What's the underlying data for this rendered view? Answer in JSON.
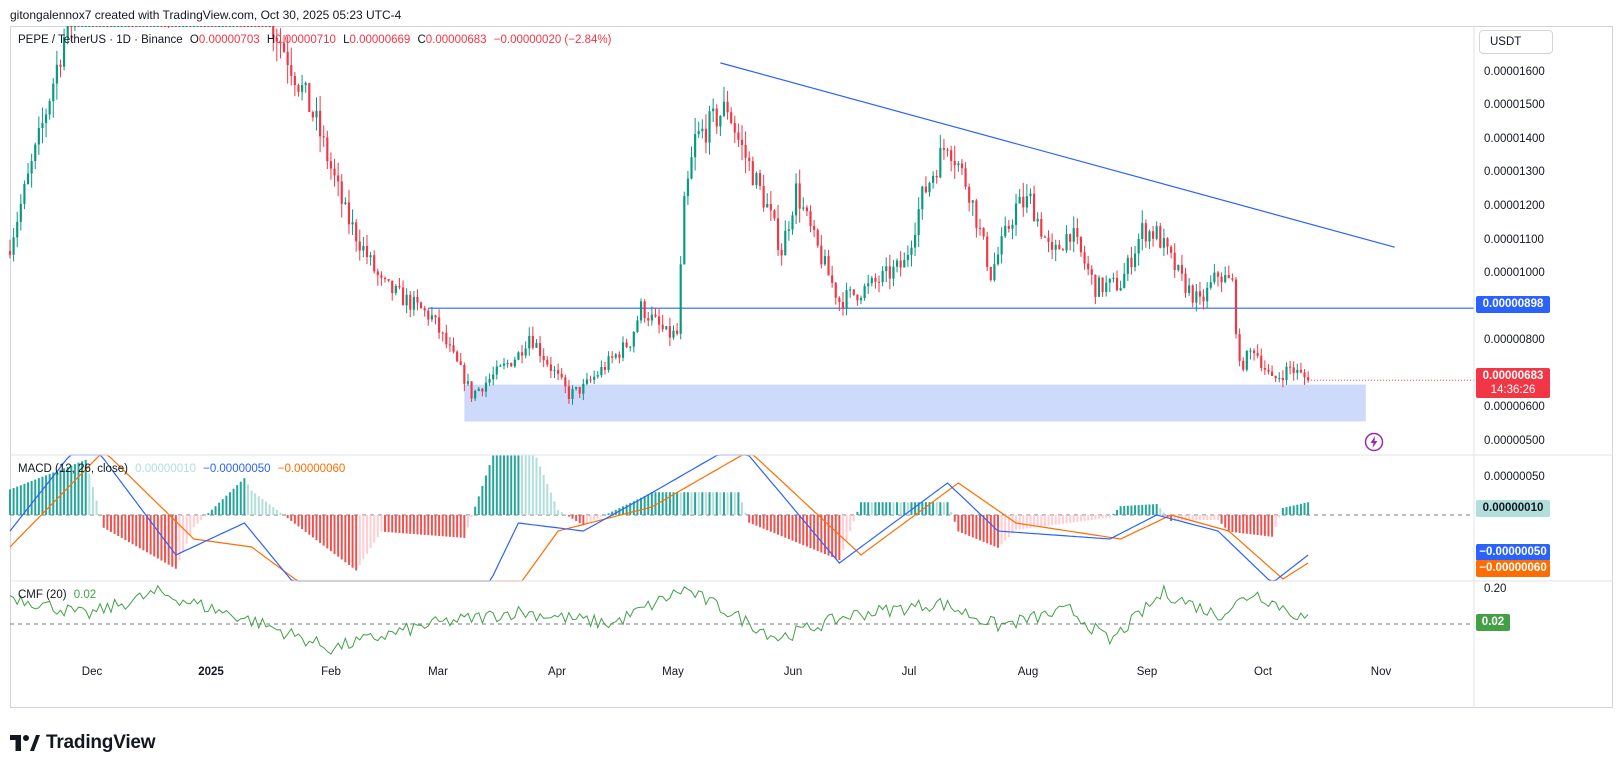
{
  "header": {
    "text": "gitongalennox7 created with TradingView.com, Oct 30, 2025 05:23 UTC-4"
  },
  "legend": {
    "symbol": "PEPE / TetherUS · 1D · Binance",
    "o_label": "O",
    "o_value": "0.00000703",
    "h_label": "H",
    "h_value": "0.00000710",
    "l_label": "L",
    "l_value": "0.00000669",
    "c_label": "C",
    "c_value": "0.00000683",
    "change": "−0.00000020 (−2.84%)",
    "macd_title": "MACD (12, 26, close)",
    "macd_hist": "0.00000010",
    "macd_line": "−0.00000050",
    "macd_signal": "−0.00000060",
    "cmf_title": "CMF (20)",
    "cmf_value": "0.02"
  },
  "price_axis": {
    "currency_button": "USDT",
    "ticks": [
      "0.00001600",
      "0.00001500",
      "0.00001400",
      "0.00001300",
      "0.00001200",
      "0.00001100",
      "0.00001000",
      "0.00000800",
      "0.00000700",
      "0.00000600",
      "0.00000500"
    ],
    "support_tag": "0.00000898",
    "last_price_tag": "0.00000683",
    "countdown": "14:36:26"
  },
  "macd_axis": {
    "ticks": [
      "0.00000050"
    ],
    "hist_tag": "0.00000010",
    "macd_tag": "−0.00000050",
    "signal_tag": "−0.00000060"
  },
  "cmf_axis": {
    "ticks": [
      "0.20"
    ],
    "value_tag": "0.02"
  },
  "time_axis": [
    "Dec",
    "2025",
    "Feb",
    "Mar",
    "Apr",
    "May",
    "Jun",
    "Jul",
    "Aug",
    "Sep",
    "Oct",
    "Nov"
  ],
  "brand": {
    "name": "TradingView"
  },
  "colors": {
    "up": "#089981",
    "down": "#f23645",
    "trendline": "#2962ff",
    "zone": "#c5d3fb",
    "macd_line": "#2962ff",
    "signal_line": "#ff6d00",
    "cmf": "#43a047",
    "last_price": "#f23645"
  },
  "chart_data": [
    {
      "type": "candlestick",
      "title": "PEPE / TetherUS · 1D · Binance",
      "ylim": [
        4.6e-06,
        1.74e-05
      ],
      "x_range": [
        "2024-11-04",
        "2025-12-15"
      ],
      "last_close": 6.83e-06,
      "anchors": [
        {
          "date": "2024-11-04",
          "price": 1.09e-05
        },
        {
          "date": "2024-11-12",
          "price": 1.4e-05
        },
        {
          "date": "2024-11-20",
          "price": 1.75e-05
        },
        {
          "date": "2024-12-05",
          "price": 2e-05
        },
        {
          "date": "2024-12-20",
          "price": 1.8e-05
        },
        {
          "date": "2025-01-05",
          "price": 2e-05
        },
        {
          "date": "2025-01-20",
          "price": 1.65e-05
        },
        {
          "date": "2025-01-28",
          "price": 1.45e-05
        },
        {
          "date": "2025-02-05",
          "price": 1.18e-05
        },
        {
          "date": "2025-02-15",
          "price": 9.7e-06
        },
        {
          "date": "2025-02-25",
          "price": 9e-06
        },
        {
          "date": "2025-03-01",
          "price": 8.7e-06
        },
        {
          "date": "2025-03-10",
          "price": 6.9e-06
        },
        {
          "date": "2025-03-12",
          "price": 6.4e-06
        },
        {
          "date": "2025-03-25",
          "price": 7.6e-06
        },
        {
          "date": "2025-03-28",
          "price": 8.2e-06
        },
        {
          "date": "2025-04-08",
          "price": 6.4e-06
        },
        {
          "date": "2025-04-12",
          "price": 6.6e-06
        },
        {
          "date": "2025-04-25",
          "price": 8e-06
        },
        {
          "date": "2025-04-28",
          "price": 9e-06
        },
        {
          "date": "2025-05-05",
          "price": 8.2e-06
        },
        {
          "date": "2025-05-08",
          "price": 8.2e-06
        },
        {
          "date": "2025-05-10",
          "price": 1.2e-05
        },
        {
          "date": "2025-05-13",
          "price": 1.4e-05
        },
        {
          "date": "2025-05-22",
          "price": 1.5e-05
        },
        {
          "date": "2025-05-25",
          "price": 1.4e-05
        },
        {
          "date": "2025-06-02",
          "price": 1.2e-05
        },
        {
          "date": "2025-06-06",
          "price": 1.07e-05
        },
        {
          "date": "2025-06-10",
          "price": 1.25e-05
        },
        {
          "date": "2025-06-15",
          "price": 1.1e-05
        },
        {
          "date": "2025-06-22",
          "price": 9.2e-06
        },
        {
          "date": "2025-06-30",
          "price": 9.6e-06
        },
        {
          "date": "2025-07-10",
          "price": 1.03e-05
        },
        {
          "date": "2025-07-15",
          "price": 1.23e-05
        },
        {
          "date": "2025-07-22",
          "price": 1.4e-05
        },
        {
          "date": "2025-07-28",
          "price": 1.25e-05
        },
        {
          "date": "2025-08-03",
          "price": 1e-05
        },
        {
          "date": "2025-08-10",
          "price": 1.2e-05
        },
        {
          "date": "2025-08-14",
          "price": 1.22e-05
        },
        {
          "date": "2025-08-20",
          "price": 1.05e-05
        },
        {
          "date": "2025-08-25",
          "price": 1.13e-05
        },
        {
          "date": "2025-09-01",
          "price": 9.6e-06
        },
        {
          "date": "2025-09-08",
          "price": 9.7e-06
        },
        {
          "date": "2025-09-14",
          "price": 1.13e-05
        },
        {
          "date": "2025-09-18",
          "price": 1.12e-05
        },
        {
          "date": "2025-09-25",
          "price": 9.8e-06
        },
        {
          "date": "2025-09-30",
          "price": 9.1e-06
        },
        {
          "date": "2025-10-05",
          "price": 1e-05
        },
        {
          "date": "2025-10-09",
          "price": 9.7e-06
        },
        {
          "date": "2025-10-11",
          "price": 7.2e-06
        },
        {
          "date": "2025-10-15",
          "price": 7.8e-06
        },
        {
          "date": "2025-10-20",
          "price": 6.8e-06
        },
        {
          "date": "2025-10-25",
          "price": 7.2e-06
        },
        {
          "date": "2025-10-30",
          "price": 6.83e-06
        }
      ],
      "drawings": {
        "descending_trendline": [
          {
            "date": "2025-05-20",
            "price": 1.63e-05
          },
          {
            "date": "2025-11-23",
            "price": 1.08e-05
          }
        ],
        "support_line": {
          "price": 8.98e-06,
          "from": "2025-02-28"
        },
        "demand_zone": {
          "from": "2025-03-10",
          "to": "2025-11-15",
          "low": 5.6e-06,
          "high": 6.7e-06
        }
      }
    },
    {
      "type": "line",
      "title": "MACD (12, 26, close)",
      "series": [
        {
          "name": "MACD",
          "anchors": [
            {
              "date": "2024-11-04",
              "value": -2e-07
            },
            {
              "date": "2024-11-25",
              "value": 1e-06
            },
            {
              "date": "2024-12-20",
              "value": -5e-07
            },
            {
              "date": "2025-01-08",
              "value": -1e-07
            },
            {
              "date": "2025-02-08",
              "value": -1.8e-06
            },
            {
              "date": "2025-03-10",
              "value": -1.5e-06
            },
            {
              "date": "2025-03-25",
              "value": -1e-07
            },
            {
              "date": "2025-04-12",
              "value": -2e-07
            },
            {
              "date": "2025-04-28",
              "value": 2e-07
            },
            {
              "date": "2025-05-25",
              "value": 9e-07
            },
            {
              "date": "2025-06-22",
              "value": -6e-07
            },
            {
              "date": "2025-07-22",
              "value": 4e-07
            },
            {
              "date": "2025-08-05",
              "value": -2e-07
            },
            {
              "date": "2025-09-05",
              "value": -3e-07
            },
            {
              "date": "2025-09-18",
              "value": 0.0
            },
            {
              "date": "2025-10-05",
              "value": -2e-07
            },
            {
              "date": "2025-10-20",
              "value": -8.5e-07
            },
            {
              "date": "2025-10-30",
              "value": -5e-07
            }
          ]
        },
        {
          "name": "Signal",
          "anchors": [
            {
              "date": "2024-11-04",
              "value": -4e-07
            },
            {
              "date": "2024-11-30",
              "value": 8e-07
            },
            {
              "date": "2024-12-25",
              "value": -3e-07
            },
            {
              "date": "2025-01-10",
              "value": -4e-07
            },
            {
              "date": "2025-02-15",
              "value": -1.6e-06
            },
            {
              "date": "2025-03-20",
              "value": -1.2e-06
            },
            {
              "date": "2025-04-05",
              "value": -2e-07
            },
            {
              "date": "2025-05-01",
              "value": 1e-07
            },
            {
              "date": "2025-05-28",
              "value": 8e-07
            },
            {
              "date": "2025-06-28",
              "value": -5e-07
            },
            {
              "date": "2025-07-25",
              "value": 4e-07
            },
            {
              "date": "2025-08-10",
              "value": -1e-07
            },
            {
              "date": "2025-09-08",
              "value": -3e-07
            },
            {
              "date": "2025-09-22",
              "value": 0.0
            },
            {
              "date": "2025-10-08",
              "value": -2e-07
            },
            {
              "date": "2025-10-23",
              "value": -8e-07
            },
            {
              "date": "2025-10-30",
              "value": -6e-07
            }
          ]
        }
      ],
      "histogram": "MACD minus Signal",
      "last": {
        "histogram": 1e-07,
        "macd": -5e-07,
        "signal": -6e-07
      }
    },
    {
      "type": "line",
      "title": "CMF (20)",
      "series": [
        {
          "name": "CMF",
          "anchors": [
            {
              "date": "2024-11-04",
              "value": 0.16
            },
            {
              "date": "2024-11-25",
              "value": 0.05
            },
            {
              "date": "2024-12-15",
              "value": 0.18
            },
            {
              "date": "2025-01-10",
              "value": 0.02
            },
            {
              "date": "2025-02-01",
              "value": -0.14
            },
            {
              "date": "2025-03-01",
              "value": 0.0
            },
            {
              "date": "2025-03-25",
              "value": 0.07
            },
            {
              "date": "2025-04-20",
              "value": 0.0
            },
            {
              "date": "2025-05-10",
              "value": 0.2
            },
            {
              "date": "2025-06-05",
              "value": -0.08
            },
            {
              "date": "2025-06-25",
              "value": 0.05
            },
            {
              "date": "2025-07-20",
              "value": 0.12
            },
            {
              "date": "2025-08-05",
              "value": -0.01
            },
            {
              "date": "2025-08-25",
              "value": 0.08
            },
            {
              "date": "2025-09-05",
              "value": -0.1
            },
            {
              "date": "2025-09-20",
              "value": 0.18
            },
            {
              "date": "2025-10-05",
              "value": 0.05
            },
            {
              "date": "2025-10-15",
              "value": 0.18
            },
            {
              "date": "2025-10-30",
              "value": 0.02
            }
          ]
        }
      ],
      "reference_lines": [
        0.0
      ],
      "last": 0.02
    }
  ]
}
